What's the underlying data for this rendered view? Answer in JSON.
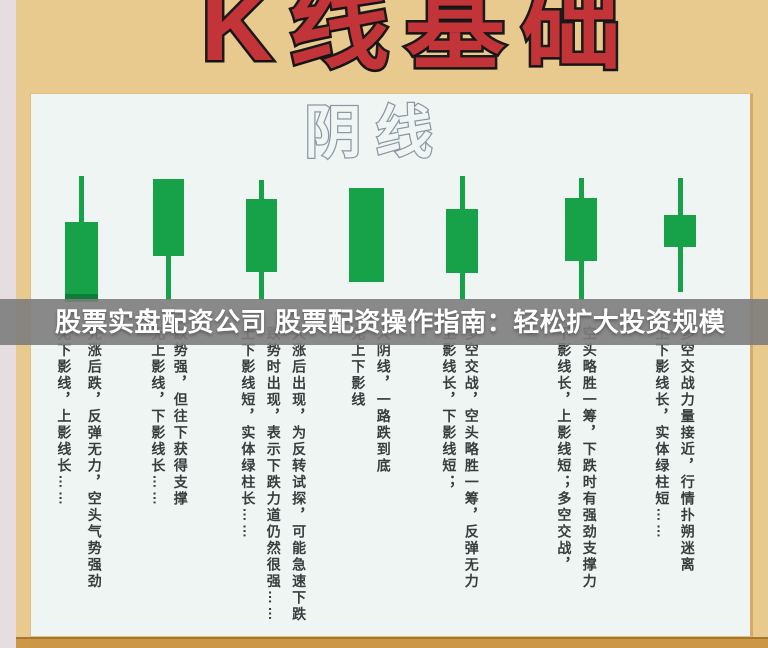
{
  "title": "K线基础",
  "section_heading": "阴线",
  "banner": {
    "text": "股票实盘配资公司 股票配资操作指南：轻松扩大投资规模"
  },
  "candles": [
    {
      "pattern": "long-upper-shadow-no-lower",
      "upper_shadow": "long",
      "lower_shadow": "none",
      "body": "long",
      "lines": [
        "无下影线，上影线长……",
        "先涨后跌，反弹无力，空头气势强劲"
      ]
    },
    {
      "pattern": "long-lower-shadow-no-upper",
      "upper_shadow": "none",
      "lower_shadow": "long",
      "body": "long",
      "lines": [
        "无上影线，下影线长……",
        "跌势强，但往下获得支撑"
      ]
    },
    {
      "pattern": "short-shadows-long-green-body",
      "upper_shadow": "short",
      "lower_shadow": "short",
      "body": "long",
      "lines": [
        "上下影线短，实体绿柱长……",
        "跌势时出现，表示下跌力道仍然很强……",
        "大涨后出现，为反转试探，可能急速下跌"
      ]
    },
    {
      "pattern": "marubozu-no-shadows",
      "upper_shadow": "none",
      "lower_shadow": "none",
      "body": "long",
      "lines": [
        "无上下影线",
        "大阴线，一路跌到底"
      ]
    },
    {
      "pattern": "long-upper-short-lower",
      "upper_shadow": "long",
      "lower_shadow": "short",
      "body": "medium",
      "lines": [
        "上影线长，下影线短；",
        "多空交战，空头略胜一筹，反弹无力"
      ]
    },
    {
      "pattern": "long-lower-short-upper",
      "upper_shadow": "short",
      "lower_shadow": "long",
      "body": "medium",
      "lines": [
        "下影线长，上影线短；多空交战，",
        "空头略胜一筹，下跌时有强劲支撑力"
      ]
    },
    {
      "pattern": "spinning-top-long-shadows",
      "upper_shadow": "long",
      "lower_shadow": "long",
      "body": "short",
      "lines": [
        "上下影线长，实体绿柱短……",
        "多空交战力量接近，行情扑朔迷离"
      ]
    }
  ],
  "colors": {
    "background_tan": "#e8ca8e",
    "panel": "#eff5f2",
    "candle_green": "#17a24a",
    "candle_green_dark": "#0e7d3a",
    "title_red": "#c23438",
    "title_outline": "#1a1a1a",
    "heading_outline": "#8a98a3",
    "banner_gray": "#7d7d7d",
    "banner_text": "#ffffff",
    "left_strip_pink": "#e5dde0",
    "bottom_strip_gold": "#cc9847",
    "description_text": "#3a3d3f"
  }
}
